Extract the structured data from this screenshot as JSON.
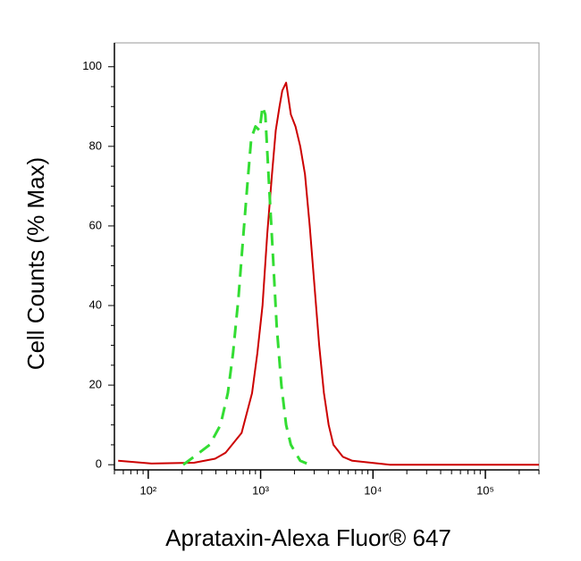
{
  "chart_data": {
    "type": "line",
    "xlabel": "Aprataxin-Alexa Fluor® 647",
    "ylabel": "Cell Counts (% Max)",
    "xscale": "log",
    "xlim": [
      50,
      300000
    ],
    "xticks": [
      {
        "value": 100,
        "label": "10²"
      },
      {
        "value": 1000,
        "label": "10³"
      },
      {
        "value": 10000,
        "label": "10⁴"
      },
      {
        "value": 100000,
        "label": "10⁵"
      }
    ],
    "ylim": [
      -1.3,
      106
    ],
    "yticks": [
      0,
      20,
      40,
      60,
      80,
      100
    ],
    "series": [
      {
        "color": "#cc0000",
        "dash": false,
        "x": [
          54,
          107,
          255,
          393,
          488,
          677,
          840,
          935,
          1040,
          1145,
          1262,
          1363,
          1472,
          1560,
          1686,
          1857,
          2045,
          2253,
          2483,
          2735,
          3013,
          3320,
          3660,
          4030,
          4440,
          5390,
          6540,
          9640,
          14200,
          300000
        ],
        "values": [
          1,
          0.3,
          0.5,
          1.5,
          3,
          8,
          18,
          28,
          40,
          58,
          73,
          84,
          90,
          94,
          96,
          88,
          85,
          80,
          73,
          60,
          45,
          30,
          18,
          10,
          5,
          2,
          1,
          0.5,
          0,
          0
        ]
      },
      {
        "color": "#33dd33",
        "dash": true,
        "x": [
          205,
          255,
          352,
          440,
          511,
          568,
          635,
          690,
          760,
          825,
          900,
          980,
          1040,
          1100,
          1190,
          1290,
          1390,
          1530,
          1686,
          1857,
          2253,
          2735
        ],
        "values": [
          0,
          2,
          5,
          10,
          18,
          28,
          42,
          55,
          70,
          82,
          85,
          84,
          90,
          88,
          70,
          52,
          35,
          20,
          10,
          5,
          1,
          0
        ]
      }
    ]
  }
}
